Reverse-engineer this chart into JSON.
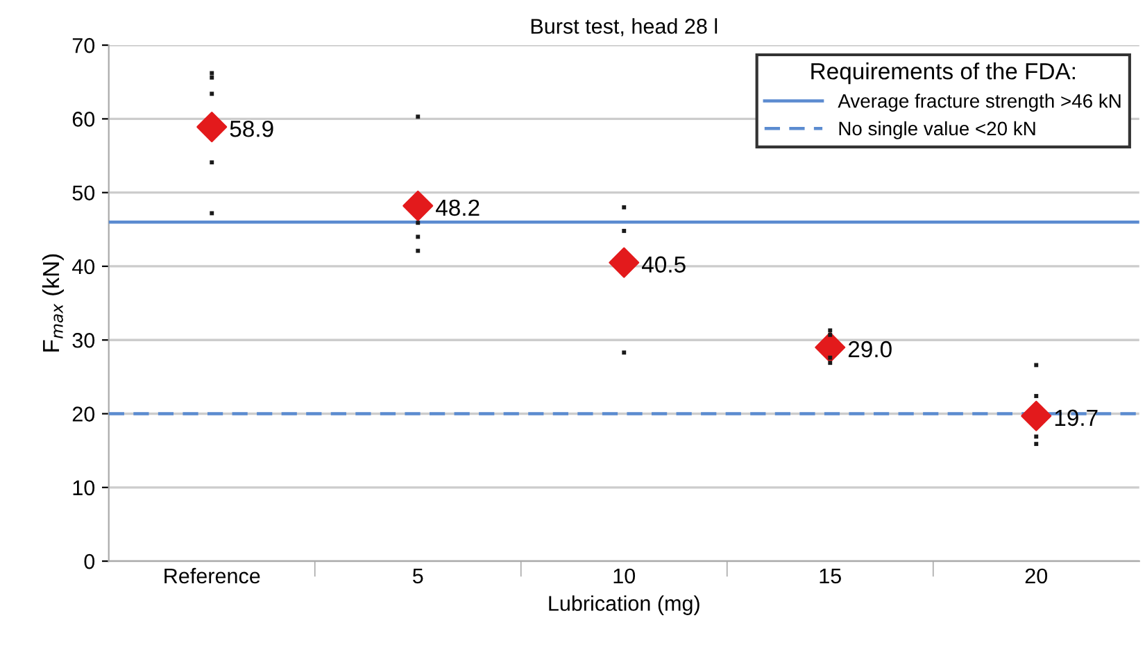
{
  "chart_data": {
    "type": "scatter",
    "title": "Burst test, head 28 l",
    "xlabel": "Lubrication (mg)",
    "ylabel": "F$_{max}$ (kN)",
    "categories": [
      "Reference",
      "5",
      "10",
      "15",
      "20"
    ],
    "series": [
      {
        "marker": "square",
        "color": "#1a1a1a",
        "x": [
          "Reference",
          "Reference",
          "Reference",
          "Reference",
          "Reference",
          "5",
          "5",
          "5",
          "5",
          "10",
          "10",
          "10",
          "15",
          "15",
          "15",
          "15",
          "20",
          "20",
          "20",
          "20"
        ],
        "values": [
          66.2,
          65.6,
          63.4,
          54.1,
          47.2,
          60.3,
          45.9,
          44.0,
          42.1,
          48.0,
          44.8,
          28.3,
          31.3,
          30.7,
          27.6,
          26.9,
          26.6,
          22.4,
          16.9,
          15.9
        ]
      },
      {
        "marker": "diamond",
        "color": "#e31a1c",
        "values": [
          58.9,
          48.2,
          40.5,
          29.0,
          19.7
        ],
        "value_labels": [
          "58.9",
          "48.2",
          "40.5",
          "29.0",
          "19.7"
        ]
      }
    ],
    "ref_lines": [
      {
        "axis": "y",
        "value": 46,
        "label": "Average fracture strength >46 kN",
        "color": "#5b8bd0",
        "line_style": "solid"
      },
      {
        "axis": "y",
        "value": 20,
        "label": "No single value <20 kN",
        "color": "#5b8bd0",
        "line_style": "dashed"
      }
    ],
    "legend_title": "Requirements of the FDA:",
    "legend": "top right",
    "ylim": [
      0,
      70
    ],
    "yticks": [
      0,
      10,
      20,
      30,
      40,
      50,
      60,
      70
    ],
    "grid": "y"
  }
}
